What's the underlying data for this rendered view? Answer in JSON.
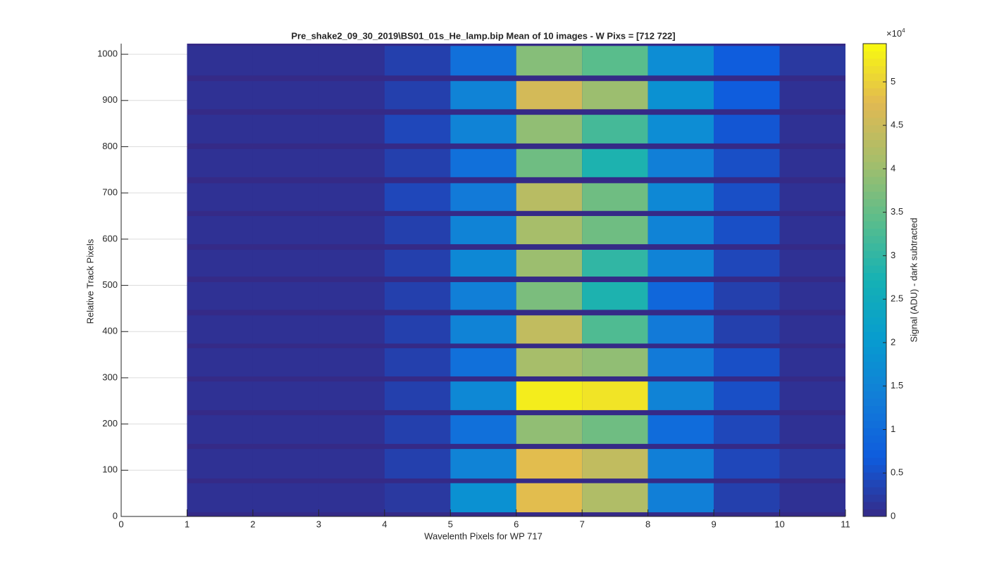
{
  "chart_data": {
    "type": "heatmap",
    "title": "Pre_shake2_09_30_2019\\BS01_01s_He_lamp.bip  Mean of 10 images - W Pixs = [712  722]",
    "xlabel": "Wavelenth Pixels for WP 717",
    "ylabel": "Relative Track Pixels",
    "colorbar_label": "Signal (ADU) - dark subtracted",
    "colorbar_multiplier": {
      "base": "×10",
      "exponent": "4"
    },
    "colormap": "parula",
    "grid": true,
    "xlim": [
      0,
      11
    ],
    "xticks": [
      0,
      1,
      2,
      3,
      4,
      5,
      6,
      7,
      8,
      9,
      10,
      11
    ],
    "ylim": [
      0,
      1023
    ],
    "yticks": [
      0,
      100,
      200,
      300,
      400,
      500,
      600,
      700,
      800,
      900,
      1000
    ],
    "clim": [
      0,
      5.44
    ],
    "cticks": [
      0,
      0.5,
      1,
      1.5,
      2,
      2.5,
      3,
      3.5,
      4,
      4.5,
      5
    ],
    "x_edges": [
      1,
      2,
      3,
      4,
      5,
      6,
      7,
      8,
      9,
      10,
      11
    ],
    "rows": [
      {
        "y": [
          9,
          72
        ],
        "values": [
          0.1,
          0.1,
          0.1,
          0.2,
          1.8,
          4.8,
          4.2,
          1.4,
          0.3,
          0.1
        ]
      },
      {
        "y": [
          82,
          146
        ],
        "values": [
          0.1,
          0.1,
          0.1,
          0.3,
          1.5,
          4.8,
          4.4,
          1.4,
          0.4,
          0.2
        ]
      },
      {
        "y": [
          157,
          219
        ],
        "values": [
          0.1,
          0.1,
          0.1,
          0.3,
          1.1,
          3.9,
          3.6,
          1.0,
          0.4,
          0.1
        ]
      },
      {
        "y": [
          230,
          292
        ],
        "values": [
          0.1,
          0.1,
          0.1,
          0.3,
          1.6,
          5.3,
          5.2,
          1.5,
          0.5,
          0.1
        ]
      },
      {
        "y": [
          303,
          364
        ],
        "values": [
          0.1,
          0.1,
          0.1,
          0.3,
          1.1,
          4.1,
          3.9,
          1.3,
          0.5,
          0.1
        ]
      },
      {
        "y": [
          374,
          435
        ],
        "values": [
          0.1,
          0.1,
          0.1,
          0.3,
          1.5,
          4.4,
          3.3,
          1.3,
          0.3,
          0.1
        ]
      },
      {
        "y": [
          447,
          507
        ],
        "values": [
          0.1,
          0.1,
          0.1,
          0.3,
          1.4,
          3.7,
          2.8,
          0.9,
          0.3,
          0.1
        ]
      },
      {
        "y": [
          519,
          577
        ],
        "values": [
          0.1,
          0.1,
          0.1,
          0.3,
          1.6,
          4.0,
          3.0,
          1.5,
          0.4,
          0.1
        ]
      },
      {
        "y": [
          589,
          650
        ],
        "values": [
          0.1,
          0.1,
          0.1,
          0.3,
          1.5,
          4.1,
          3.6,
          1.5,
          0.5,
          0.1
        ]
      },
      {
        "y": [
          661,
          721
        ],
        "values": [
          0.1,
          0.1,
          0.1,
          0.4,
          1.3,
          4.3,
          3.6,
          1.6,
          0.5,
          0.1
        ]
      },
      {
        "y": [
          734,
          795
        ],
        "values": [
          0.1,
          0.1,
          0.1,
          0.3,
          1.1,
          3.6,
          2.8,
          1.4,
          0.5,
          0.1
        ]
      },
      {
        "y": [
          807,
          869
        ],
        "values": [
          0.1,
          0.1,
          0.1,
          0.4,
          1.5,
          3.9,
          3.2,
          1.7,
          0.6,
          0.1
        ]
      },
      {
        "y": [
          881,
          942
        ],
        "values": [
          0.1,
          0.1,
          0.1,
          0.3,
          1.5,
          4.6,
          4.0,
          1.8,
          0.7,
          0.1
        ]
      },
      {
        "y": [
          954,
          1018
        ],
        "values": [
          0.1,
          0.1,
          0.1,
          0.3,
          1.1,
          3.8,
          3.4,
          1.7,
          0.7,
          0.2
        ]
      }
    ]
  }
}
